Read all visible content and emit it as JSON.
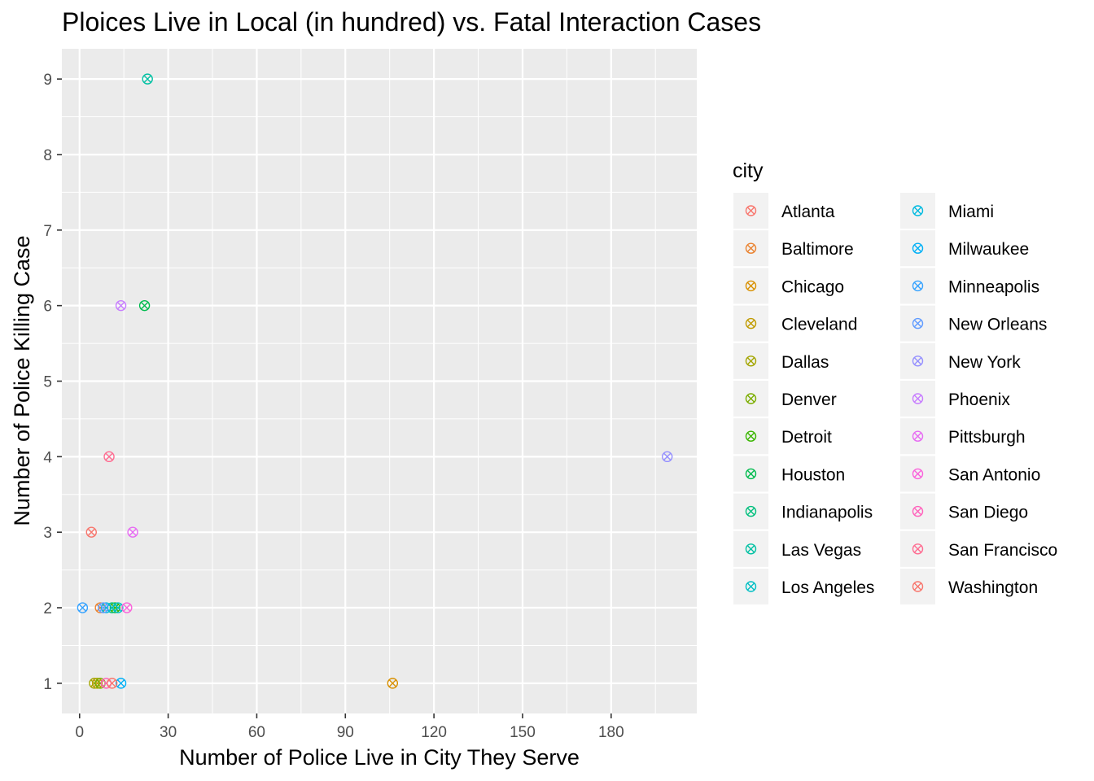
{
  "chart_data": {
    "type": "scatter",
    "title": "Ploices Live in Local (in hundred) vs. Fatal Interaction Cases",
    "xlabel": "Number of Police Live in City They Serve",
    "ylabel": "Number of Police Killing Case",
    "xlim": [
      -6,
      209
    ],
    "ylim": [
      0.6,
      9.4
    ],
    "x_ticks": [
      0,
      30,
      60,
      90,
      120,
      150,
      180
    ],
    "y_ticks": [
      1,
      2,
      3,
      4,
      5,
      6,
      7,
      8,
      9
    ],
    "grid": true,
    "marker": "circle-cross",
    "legend": {
      "title": "city",
      "placement": "right",
      "columns": 2
    },
    "series": [
      {
        "name": "Atlanta",
        "color": "#F8766D",
        "points": [
          [
            4,
            3
          ]
        ]
      },
      {
        "name": "Baltimore",
        "color": "#EA8331",
        "points": [
          [
            7,
            2
          ]
        ]
      },
      {
        "name": "Chicago",
        "color": "#D89000",
        "points": [
          [
            106,
            1
          ]
        ]
      },
      {
        "name": "Cleveland",
        "color": "#C09B00",
        "points": [
          [
            6,
            1
          ]
        ]
      },
      {
        "name": "Dallas",
        "color": "#A3A500",
        "points": [
          [
            5,
            1
          ]
        ]
      },
      {
        "name": "Denver",
        "color": "#7CAE00",
        "points": [
          [
            7,
            1
          ]
        ]
      },
      {
        "name": "Detroit",
        "color": "#39B600",
        "points": [
          [
            12,
            2
          ]
        ]
      },
      {
        "name": "Houston",
        "color": "#00BB4E",
        "points": [
          [
            22,
            6
          ]
        ]
      },
      {
        "name": "Indianapolis",
        "color": "#00BF7D",
        "points": [
          [
            11,
            2
          ]
        ]
      },
      {
        "name": "Las Vegas",
        "color": "#00C1A3",
        "points": [
          [
            23,
            9
          ]
        ]
      },
      {
        "name": "Los Angeles",
        "color": "#00BFC4",
        "points": [
          [
            13,
            2
          ]
        ]
      },
      {
        "name": "Miami",
        "color": "#00BAE0",
        "points": [
          [
            9,
            2
          ]
        ]
      },
      {
        "name": "Milwaukee",
        "color": "#00B0F6",
        "points": [
          [
            14,
            1
          ]
        ]
      },
      {
        "name": "Minneapolis",
        "color": "#35A2FF",
        "points": [
          [
            1,
            2
          ]
        ]
      },
      {
        "name": "New Orleans",
        "color": "#619CFF",
        "points": [
          [
            8,
            2
          ]
        ]
      },
      {
        "name": "New York",
        "color": "#9590FF",
        "points": [
          [
            199,
            4
          ]
        ]
      },
      {
        "name": "Phoenix",
        "color": "#C77CFF",
        "points": [
          [
            14,
            6
          ]
        ]
      },
      {
        "name": "Pittsburgh",
        "color": "#E76BF3",
        "points": [
          [
            18,
            3
          ]
        ]
      },
      {
        "name": "San Antonio",
        "color": "#FA62DB",
        "points": [
          [
            16,
            2
          ]
        ]
      },
      {
        "name": "San Diego",
        "color": "#FF62BC",
        "points": [
          [
            9,
            1
          ]
        ]
      },
      {
        "name": "San Francisco",
        "color": "#FF6C91",
        "points": [
          [
            10,
            4
          ]
        ]
      },
      {
        "name": "Washington",
        "color": "#F8766D",
        "points": [
          [
            11,
            1
          ]
        ]
      }
    ]
  }
}
